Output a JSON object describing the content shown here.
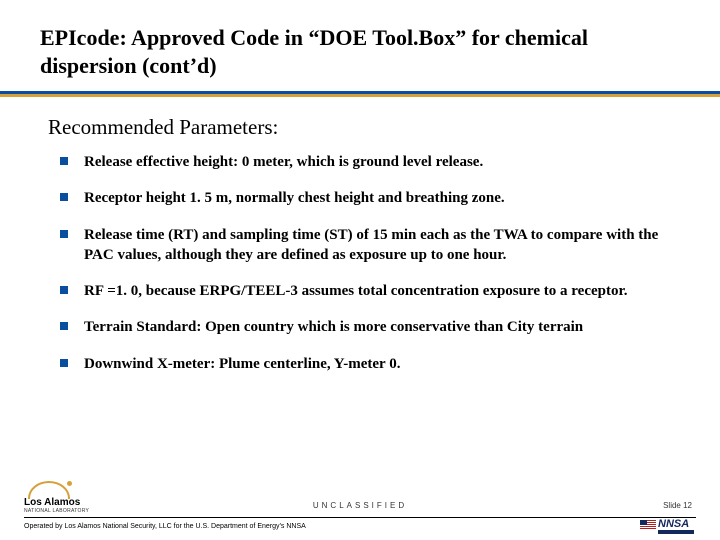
{
  "title": "EPIcode: Approved Code in “DOE Tool.Box” for chemical dispersion  (cont’d)",
  "subhead": "Recommended Parameters:",
  "bullets": [
    "Release effective height: 0 meter, which is ground level release.",
    "Receptor height 1. 5 m, normally chest height and breathing zone.",
    "Release time (RT) and sampling time (ST) of 15 min each as the TWA to compare with the PAC values, although they are defined as exposure up to one hour.",
    "RF =1. 0, because ERPG/TEEL-3 assumes total concentration exposure to a receptor.",
    "Terrain Standard: Open country which is more conservative than City terrain",
    "Downwind X-meter: Plume centerline, Y-meter 0."
  ],
  "footer": {
    "logo_main": "Los Alamos",
    "logo_sub": "NATIONAL LABORATORY",
    "unclassified": "UNCLASSIFIED",
    "slide_num": "Slide 12",
    "operated": "Operated by Los Alamos National Security, LLC for the U.S. Department of Energy’s NNSA",
    "nnsa": "NNSA"
  },
  "colors": {
    "rule_blue": "#0a4f9e",
    "rule_gold": "#d6a13a",
    "bullet": "#0a4f9e"
  }
}
